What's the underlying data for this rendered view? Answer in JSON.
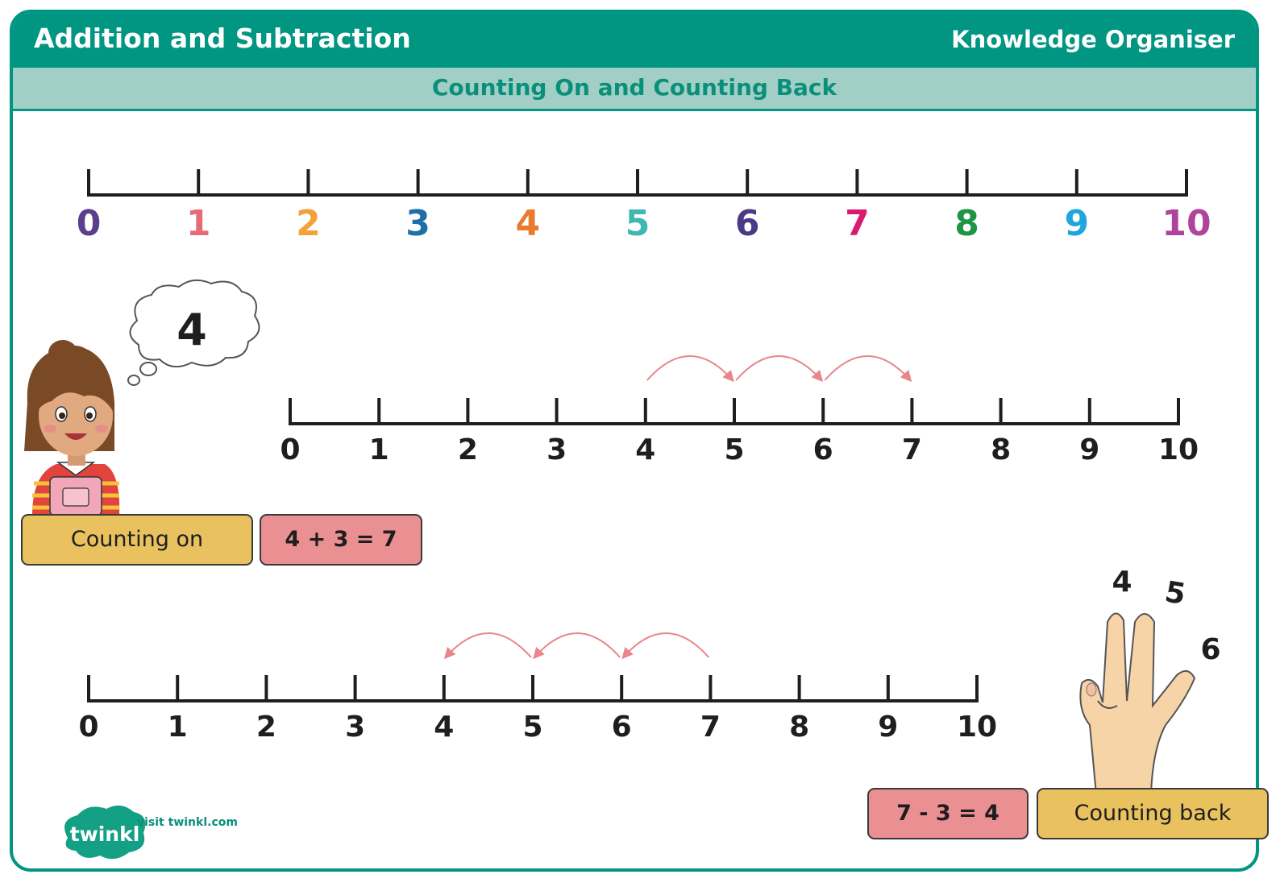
{
  "header": {
    "title": "Addition and Subtraction",
    "right_label": "Knowledge Organiser",
    "subtitle": "Counting On and Counting Back"
  },
  "colors": {
    "brand_teal": "#009682",
    "subheader_bg": "#a2cfc5",
    "tag_yellow": "#e9c25f",
    "tag_pink": "#ea8f92",
    "jump_arrow": "#e8868c"
  },
  "top_number_line": {
    "numbers": [
      "0",
      "1",
      "2",
      "3",
      "4",
      "5",
      "6",
      "7",
      "8",
      "9",
      "10"
    ],
    "number_colors": [
      "#5b3e8c",
      "#e76b74",
      "#f2a13b",
      "#1e6fa8",
      "#ea7a2e",
      "#3fb7b3",
      "#4b3a86",
      "#d81b70",
      "#1e9542",
      "#1fa6dc",
      "#b0449a"
    ]
  },
  "counting_on": {
    "numbers": [
      "0",
      "1",
      "2",
      "3",
      "4",
      "5",
      "6",
      "7",
      "8",
      "9",
      "10"
    ],
    "thought_number": "4",
    "start": 4,
    "jumps": 3,
    "label": "Counting on",
    "equation": "4 + 3 = 7",
    "character": "girl-with-thought-bubble"
  },
  "counting_back": {
    "numbers": [
      "0",
      "1",
      "2",
      "3",
      "4",
      "5",
      "6",
      "7",
      "8",
      "9",
      "10"
    ],
    "start": 7,
    "jumps": 3,
    "label": "Counting back",
    "equation": "7 - 3 = 4",
    "finger_numbers": [
      "4",
      "5",
      "6"
    ]
  },
  "footer": {
    "logo_text": "twinkl",
    "visit_text": "visit twinkl.com"
  }
}
